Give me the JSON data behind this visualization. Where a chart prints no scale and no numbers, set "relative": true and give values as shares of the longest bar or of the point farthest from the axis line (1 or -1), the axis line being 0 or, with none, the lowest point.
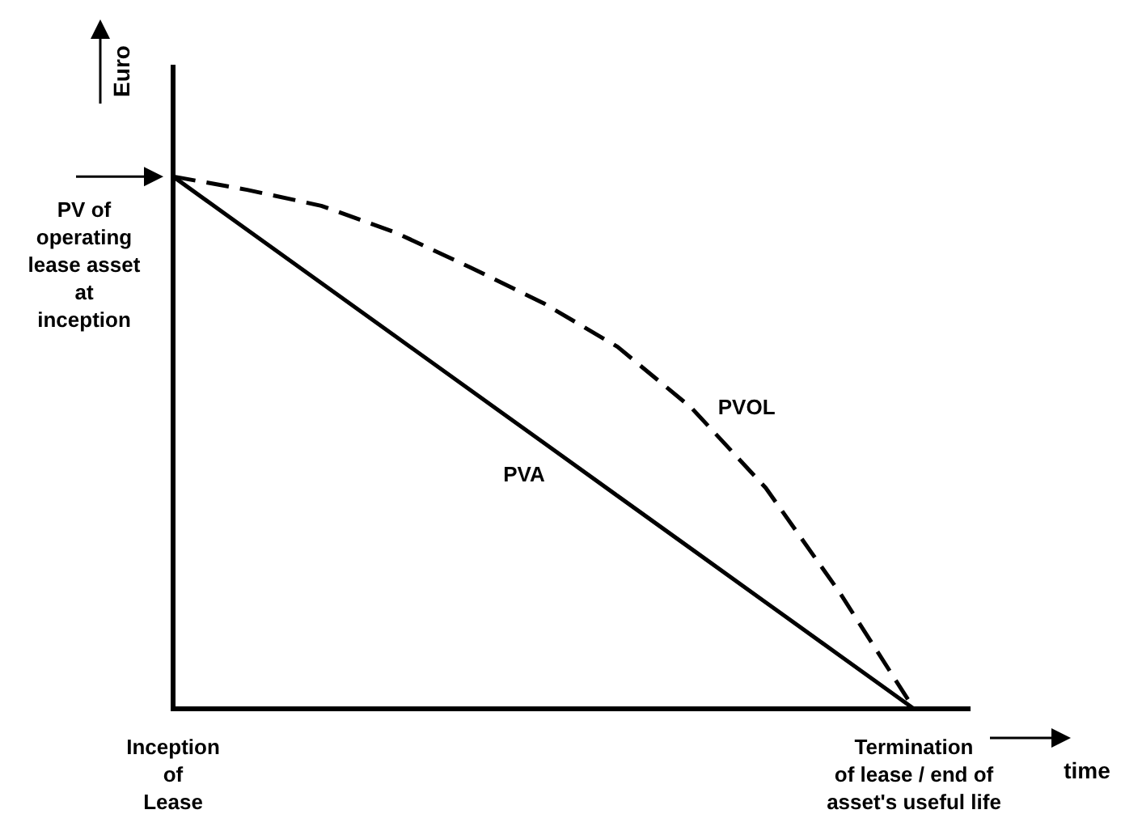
{
  "chart_data": {
    "type": "line",
    "relative": true,
    "xlabel": "time",
    "ylabel": "Euro",
    "categories": [
      "Inception\nof\nLease",
      null,
      null,
      null,
      null,
      null,
      null,
      null,
      null,
      null,
      "Termination\nof lease / end of\nasset's useful life"
    ],
    "annotations": [
      "PV of\noperating\nlease asset\nat\ninception"
    ],
    "series": [
      {
        "name": "PVOL",
        "color": "#000000",
        "line_style": "dashed",
        "values": [
          1,
          0.975,
          0.945,
          0.895,
          0.83,
          0.762,
          0.68,
          0.565,
          0.415,
          0.218,
          0
        ]
      },
      {
        "name": "PVA",
        "color": "#000000",
        "line_style": "solid",
        "values": [
          1,
          0.9,
          0.8,
          0.7,
          0.6,
          0.5,
          0.4,
          0.3,
          0.2,
          0.1,
          0
        ]
      }
    ],
    "grid": false
  }
}
